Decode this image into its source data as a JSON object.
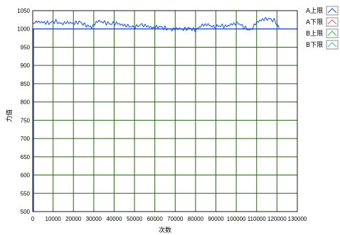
{
  "chart_data": {
    "type": "line",
    "xlabel": "次数",
    "ylabel": "力值",
    "xlim": [
      0,
      130000
    ],
    "ylim": [
      500,
      1050
    ],
    "x_ticks": [
      0,
      10000,
      20000,
      30000,
      40000,
      50000,
      60000,
      70000,
      80000,
      90000,
      100000,
      110000,
      120000,
      130000
    ],
    "y_ticks": [
      500,
      550,
      600,
      650,
      700,
      750,
      800,
      850,
      900,
      950,
      1000,
      1050
    ],
    "grid": true,
    "grid_color": "#2e5e1e",
    "legend_position": "right-top",
    "series": [
      {
        "name": "A上限",
        "color": "#1f4fd1",
        "x": [
          0,
          2000,
          5000,
          8000,
          11000,
          14000,
          17000,
          20000,
          23000,
          26000,
          29000,
          32000,
          35000,
          38000,
          41000,
          44000,
          47000,
          50000,
          53000,
          56000,
          59000,
          62000,
          65000,
          68000,
          71000,
          74000,
          77000,
          80000,
          83000,
          86000,
          89000,
          92000,
          95000,
          98000,
          101000,
          104000,
          107000,
          110000,
          113000,
          116000,
          119000,
          121000
        ],
        "y": [
          1015,
          1020,
          1018,
          1016,
          1021,
          1014,
          1018,
          1015,
          1019,
          1010,
          1005,
          1022,
          1018,
          1014,
          1016,
          1011,
          1008,
          1004,
          1012,
          1008,
          1003,
          1006,
          1002,
          998,
          1001,
          999,
          1002,
          996,
          1010,
          1012,
          1005,
          1009,
          1007,
          1013,
          1016,
          1004,
          996,
          1018,
          1026,
          1028,
          1022,
          1002
        ]
      },
      {
        "name": "A下限",
        "color": "#e05a5a",
        "x": [],
        "y": []
      },
      {
        "name": "B上限",
        "color": "#3cb83c",
        "x": [],
        "y": []
      },
      {
        "name": "B下限",
        "color": "#3cb8b8",
        "x": [],
        "y": []
      }
    ],
    "reference_lines": [
      {
        "y": 1000,
        "color": "#1f4fd1"
      }
    ]
  }
}
